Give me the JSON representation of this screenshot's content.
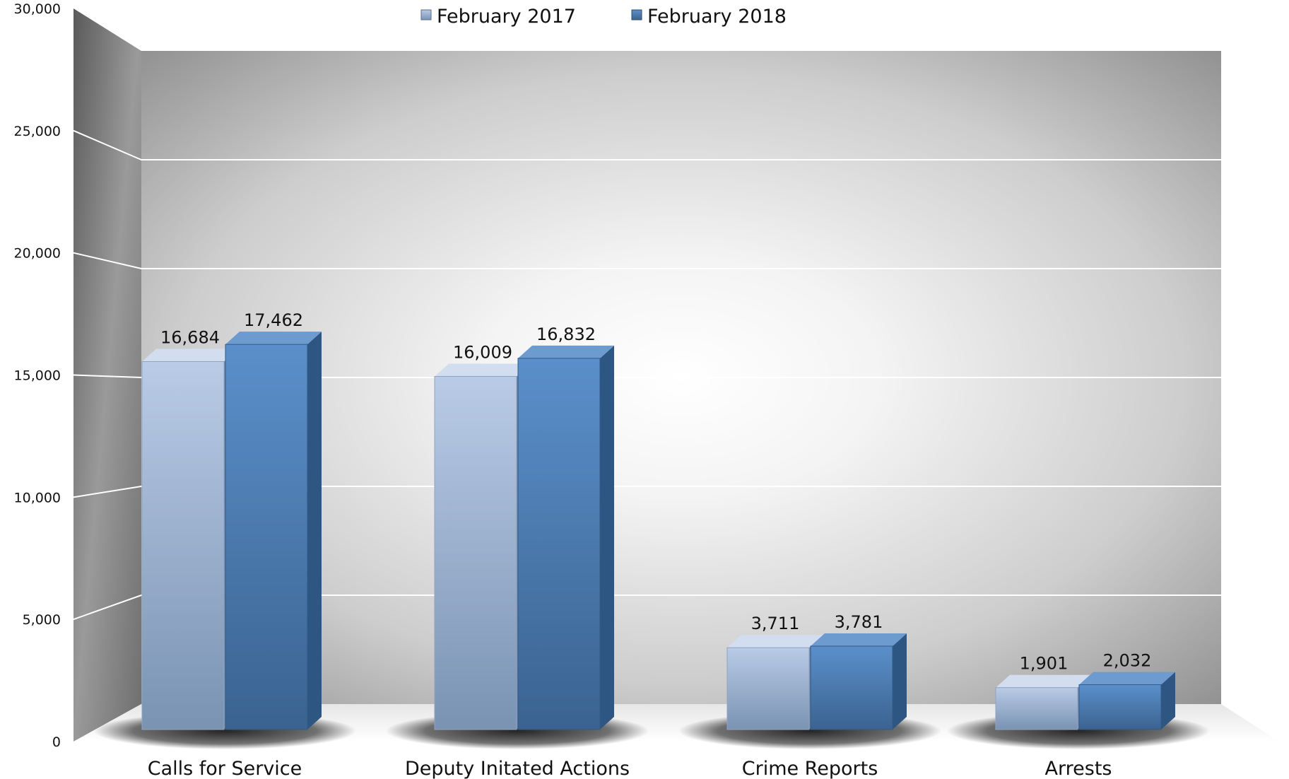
{
  "chart_data": {
    "type": "bar",
    "title": "",
    "xlabel": "",
    "ylabel": "",
    "ylim": [
      0,
      30000
    ],
    "yticks": [
      0,
      5000,
      10000,
      15000,
      20000,
      25000,
      30000
    ],
    "ytick_labels": [
      "0",
      "5,000",
      "10,000",
      "15,000",
      "20,000",
      "25,000",
      "30,000"
    ],
    "grid": true,
    "legend_position": "top-center",
    "categories": [
      "Calls for Service",
      "Deputy Initated Actions",
      "Crime Reports",
      "Arrests"
    ],
    "series": [
      {
        "name": "February 2017",
        "values": [
          16684,
          16009,
          3711,
          1901
        ],
        "labels": [
          "16,684",
          "16,009",
          "3,711",
          "1,901"
        ],
        "color": "#a9bcdb"
      },
      {
        "name": "February 2018",
        "values": [
          17462,
          16832,
          3781,
          2032
        ],
        "labels": [
          "17,462",
          "16,832",
          "3,781",
          "2,032"
        ],
        "color": "#4a7db5"
      }
    ]
  }
}
